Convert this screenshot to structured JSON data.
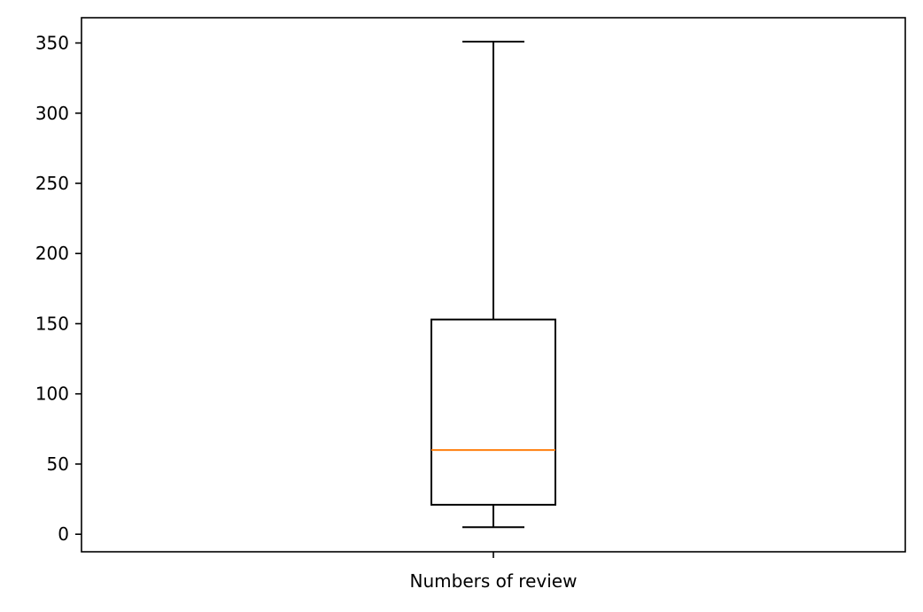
{
  "chart_data": {
    "type": "box",
    "categories": [
      "Numbers of review"
    ],
    "boxes": [
      {
        "category": "Numbers of review",
        "whisker_low": 5,
        "q1": 21,
        "median": 60,
        "q3": 153,
        "whisker_high": 351
      }
    ],
    "ylim": [
      -12.5,
      368
    ],
    "yticks": [
      0,
      50,
      100,
      150,
      200,
      250,
      300,
      350
    ],
    "grid": false,
    "legend": "none",
    "colors": {
      "box": "#000000",
      "median": "#ff7f0e",
      "background": "#ffffff"
    }
  }
}
